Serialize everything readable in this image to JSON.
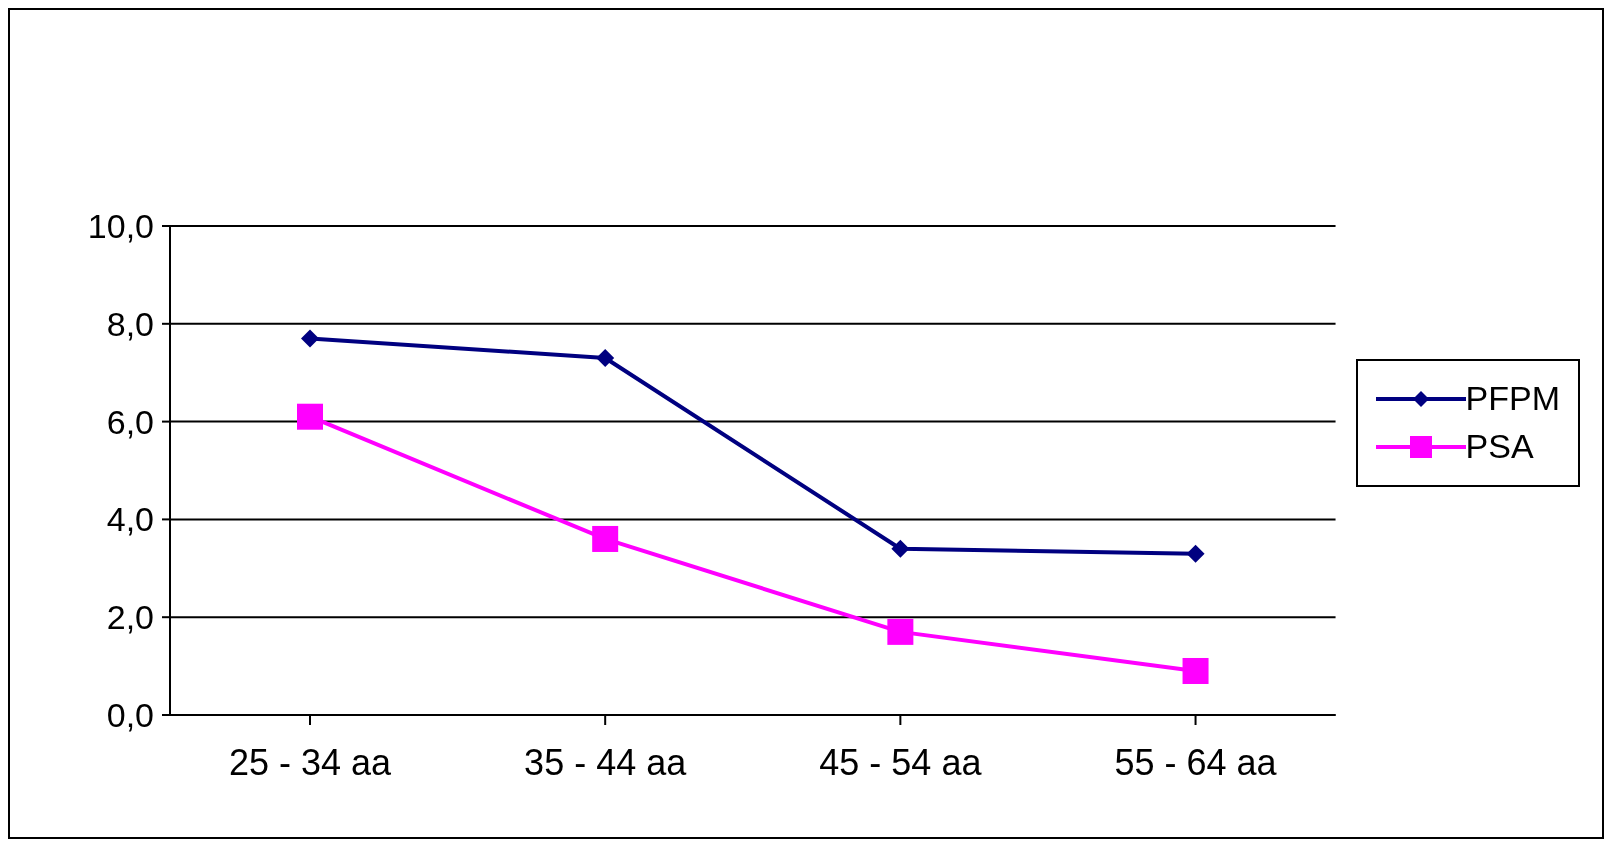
{
  "chart_data": {
    "type": "line",
    "categories": [
      "25 - 34 aa",
      "35 - 44 aa",
      "45 - 54 aa",
      "55 - 64 aa"
    ],
    "series": [
      {
        "name": "PFPM",
        "color": "#000080",
        "marker": "diamond",
        "values": [
          7.7,
          7.3,
          3.4,
          3.3
        ]
      },
      {
        "name": "PSA",
        "color": "#ff00ff",
        "marker": "square",
        "values": [
          6.1,
          3.6,
          1.7,
          0.9
        ]
      }
    ],
    "ylim": [
      0,
      10
    ],
    "yticks": [
      {
        "value": 0,
        "label": "0,0"
      },
      {
        "value": 2,
        "label": "2,0"
      },
      {
        "value": 4,
        "label": "4,0"
      },
      {
        "value": 6,
        "label": "6,0"
      },
      {
        "value": 8,
        "label": "8,0"
      },
      {
        "value": 10,
        "label": "10,0"
      }
    ],
    "grid": "y",
    "legend": "right"
  }
}
